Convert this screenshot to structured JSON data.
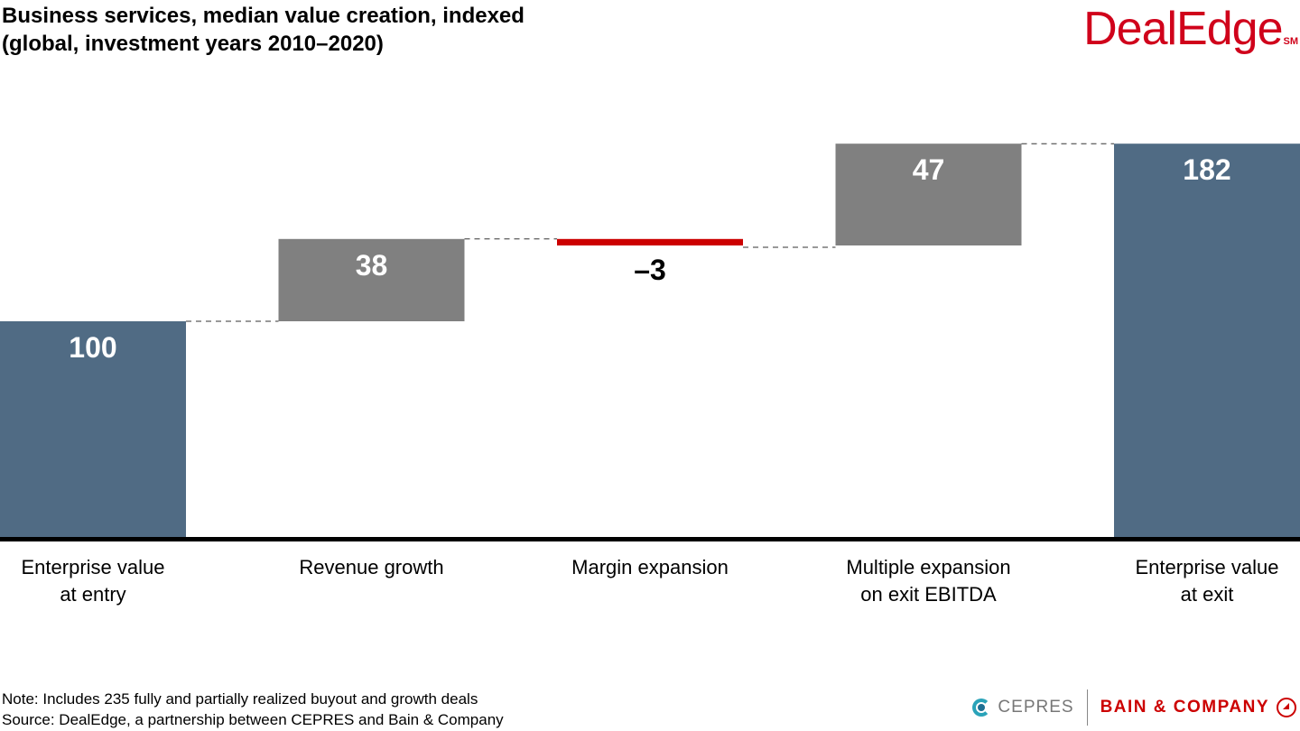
{
  "header": {
    "title_line1": "Business services, median value creation, indexed",
    "title_line2": "(global, investment years 2010–2020)",
    "logo": "DealEdge",
    "logo_mark": "SM"
  },
  "chart_data": {
    "type": "waterfall",
    "title": "Business services, median value creation, indexed (global, investment years 2010–2020)",
    "categories": [
      [
        "Enterprise value",
        "at entry"
      ],
      [
        "Revenue growth"
      ],
      [
        "Margin expansion"
      ],
      [
        "Multiple expansion",
        "on exit EBITDA"
      ],
      [
        "Enterprise value",
        "at exit"
      ]
    ],
    "values": [
      100,
      38,
      -3,
      47,
      182
    ],
    "labels": [
      "100",
      "38",
      "–3",
      "47",
      "182"
    ],
    "kinds": [
      "total",
      "delta",
      "delta",
      "delta",
      "total"
    ],
    "ylim": [
      0,
      200
    ],
    "colors": {
      "total": "#506b84",
      "increase": "#808080",
      "decrease": "#cc0000"
    },
    "grid": false
  },
  "footer": {
    "note": "Note: Includes 235 fully and partially realized buyout and growth deals",
    "source": "Source: DealEdge, a partnership between CEPRES and Bain & Company",
    "cepres": "CEPRES",
    "bain": "BAIN & COMPANY"
  }
}
